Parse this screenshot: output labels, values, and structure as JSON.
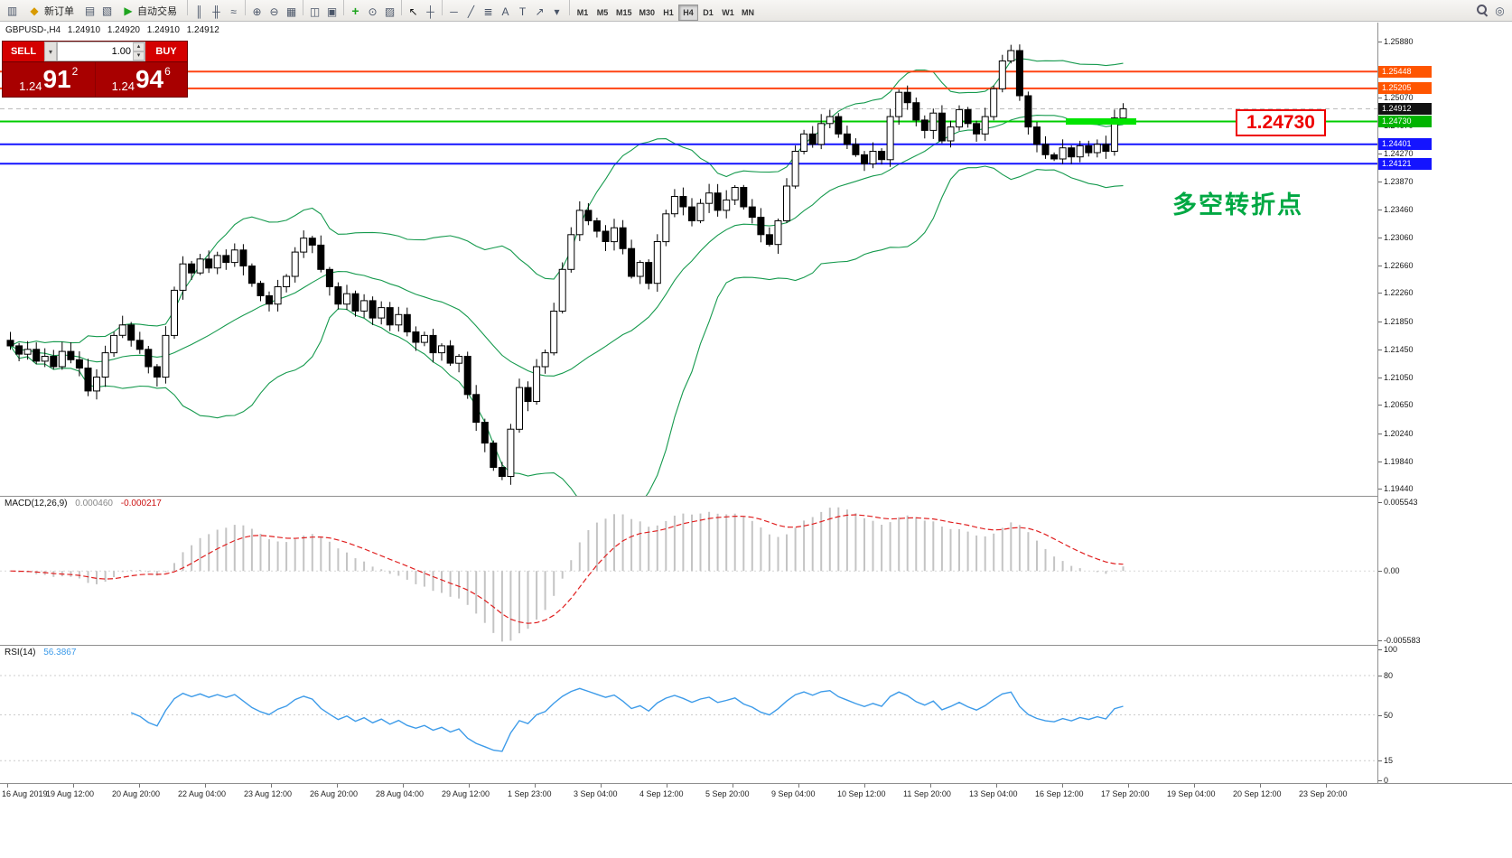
{
  "toolbar": {
    "terminal_icon": "▥",
    "new_order_label": "新订单",
    "new_order_icon": "◆",
    "autotrade_label": "自动交易",
    "autotrade_icon": "▶",
    "left_icons": [
      [
        "profiles-icon",
        "▤"
      ],
      [
        "indicators-window-icon",
        "▧"
      ]
    ],
    "tool_groups": [
      [
        [
          "bar-chart-icon",
          "║"
        ],
        [
          "candlestick-icon",
          "╫"
        ],
        [
          "line-chart-icon",
          "≈"
        ]
      ],
      [
        [
          "zoom-in-icon",
          "⊕"
        ],
        [
          "zoom-out-icon",
          "⊖"
        ],
        [
          "grid-icon",
          "▦"
        ]
      ],
      [
        [
          "tile-windows-icon",
          "◫"
        ],
        [
          "arrange-icon",
          "▣"
        ]
      ],
      [
        [
          "add-indicator-icon",
          "+"
        ],
        [
          "period-icon",
          "⊙"
        ],
        [
          "templates-icon",
          "▨"
        ]
      ],
      [
        [
          "cursor-icon",
          "↖"
        ],
        [
          "crosshair-icon",
          "┼"
        ]
      ],
      [
        [
          "horizontal-line-icon",
          "─"
        ],
        [
          "trendline-icon",
          "╱"
        ],
        [
          "fibonacci-icon",
          "≣"
        ],
        [
          "text-icon",
          "A"
        ],
        [
          "label-icon",
          "T"
        ],
        [
          "arrows-icon",
          "↗"
        ],
        [
          "dropdown-icon",
          "▾"
        ]
      ]
    ],
    "timeframes": [
      "M1",
      "M5",
      "M15",
      "M30",
      "H1",
      "H4",
      "D1",
      "W1",
      "MN"
    ],
    "active_timeframe": "H4",
    "right_icons": [
      [
        "search-icon",
        "MAG"
      ],
      [
        "target-icon",
        "◎"
      ]
    ]
  },
  "icons": {
    "spinner_up": "▴",
    "spinner_down": "▾",
    "dropdown": "▾"
  },
  "trade_panel": {
    "sell_label": "SELL",
    "buy_label": "BUY",
    "volume": "1.00",
    "sell_price": {
      "prefix": "1.24",
      "pips": "91",
      "frac": "2"
    },
    "buy_price": {
      "prefix": "1.24",
      "pips": "94",
      "frac": "6"
    }
  },
  "chart": {
    "info": {
      "symbol": "GBPUSD-,H4",
      "open": "1.24910",
      "high": "1.24920",
      "low": "1.24910",
      "close": "1.24912"
    },
    "current_price": "1.24912",
    "annotation_box": "1.24730",
    "annotation_text": "多空转折点",
    "levels": [
      {
        "price": "1.25448",
        "label": "1.25448",
        "line_color": "#ff4413",
        "tag_color": "#ff5500"
      },
      {
        "price": "1.25205",
        "label": "1.25205",
        "line_color": "#ff4413",
        "tag_color": "#ff5500"
      },
      {
        "price": "1.24730",
        "label": "1.24730",
        "line_color": "#00cc00",
        "tag_color": "#00b300"
      },
      {
        "price": "1.24401",
        "label": "1.24401",
        "line_color": "#1414ff",
        "tag_color": "#1414ff"
      },
      {
        "price": "1.24121",
        "label": "1.24121",
        "line_color": "#1414ff",
        "tag_color": "#1414ff"
      }
    ],
    "axis_labels": [
      "1.25880",
      "1.25070",
      "1.24670",
      "1.24270",
      "1.23870",
      "1.23460",
      "1.23060",
      "1.22660",
      "1.22260",
      "1.21850",
      "1.21450",
      "1.21050",
      "1.20650",
      "1.20240",
      "1.19840",
      "1.19440"
    ]
  },
  "macd": {
    "label": "MACD(12,26,9)",
    "value_main": "0.000460",
    "value_signal": "-0.000217",
    "axis": [
      "0.005543",
      "0.00",
      "-0.005583"
    ]
  },
  "rsi": {
    "label": "RSI(14)",
    "value": "56.3867",
    "levels": [
      100,
      80,
      50,
      15,
      0
    ]
  },
  "time_axis": [
    "16 Aug 2019",
    "19 Aug 12:00",
    "20 Aug 20:00",
    "22 Aug 04:00",
    "23 Aug 12:00",
    "26 Aug 20:00",
    "28 Aug 04:00",
    "29 Aug 12:00",
    "1 Sep 23:00",
    "3 Sep 04:00",
    "4 Sep 12:00",
    "5 Sep 20:00",
    "9 Sep 04:00",
    "10 Sep 12:00",
    "11 Sep 20:00",
    "13 Sep 04:00",
    "16 Sep 12:00",
    "17 Sep 20:00",
    "19 Sep 04:00",
    "20 Sep 12:00",
    "23 Sep 20:00"
  ],
  "colors": {
    "bull_candle": "#ffffff",
    "bear_candle": "#000000",
    "candle_outline": "#000000",
    "bands": "#169a4e",
    "macd_histogram": "#c4c4c4",
    "macd_signal": "#e02020",
    "rsi_line": "#3d9be9",
    "current_tag": "#111111",
    "highlight_segment": "#00e400"
  },
  "chart_data": {
    "type": "candlestick",
    "symbol": "GBPUSD",
    "timeframe": "H4",
    "price_min": 1.1944,
    "price_max": 1.2588,
    "indicators": {
      "bollinger_period": 20,
      "bollinger_dev": 2,
      "macd": [
        12,
        26,
        9
      ],
      "rsi_period": 14
    },
    "closes": [
      1.215,
      1.2138,
      1.2145,
      1.2128,
      1.2135,
      1.212,
      1.2142,
      1.213,
      1.2118,
      1.2085,
      1.2105,
      1.214,
      1.2165,
      1.218,
      1.2158,
      1.2145,
      1.212,
      1.2105,
      1.2165,
      1.223,
      1.2268,
      1.2255,
      1.2275,
      1.2262,
      1.228,
      1.227,
      1.2288,
      1.2265,
      1.224,
      1.2222,
      1.221,
      1.2235,
      1.225,
      1.2285,
      1.2305,
      1.2295,
      1.226,
      1.2235,
      1.221,
      1.2225,
      1.22,
      1.2215,
      1.219,
      1.2205,
      1.218,
      1.2195,
      1.217,
      1.2155,
      1.2165,
      1.214,
      1.215,
      1.2125,
      1.2135,
      1.208,
      1.204,
      1.201,
      1.1975,
      1.1962,
      1.203,
      1.209,
      1.207,
      1.212,
      1.214,
      1.22,
      1.226,
      1.231,
      1.2345,
      1.233,
      1.2315,
      1.23,
      1.232,
      1.229,
      1.225,
      1.227,
      1.224,
      1.23,
      1.234,
      1.2365,
      1.235,
      1.233,
      1.2355,
      1.237,
      1.2345,
      1.236,
      1.2378,
      1.235,
      1.2335,
      1.231,
      1.2296,
      1.233,
      1.238,
      1.243,
      1.2455,
      1.244,
      1.247,
      1.248,
      1.2455,
      1.244,
      1.2425,
      1.2412,
      1.243,
      1.2418,
      1.248,
      1.2515,
      1.25,
      1.2475,
      1.246,
      1.2485,
      1.2445,
      1.2465,
      1.249,
      1.247,
      1.2455,
      1.248,
      1.252,
      1.256,
      1.2575,
      1.251,
      1.2465,
      1.244,
      1.2425,
      1.2419,
      1.2435,
      1.2422,
      1.2438,
      1.2428,
      1.244,
      1.243,
      1.2478,
      1.24912
    ]
  }
}
